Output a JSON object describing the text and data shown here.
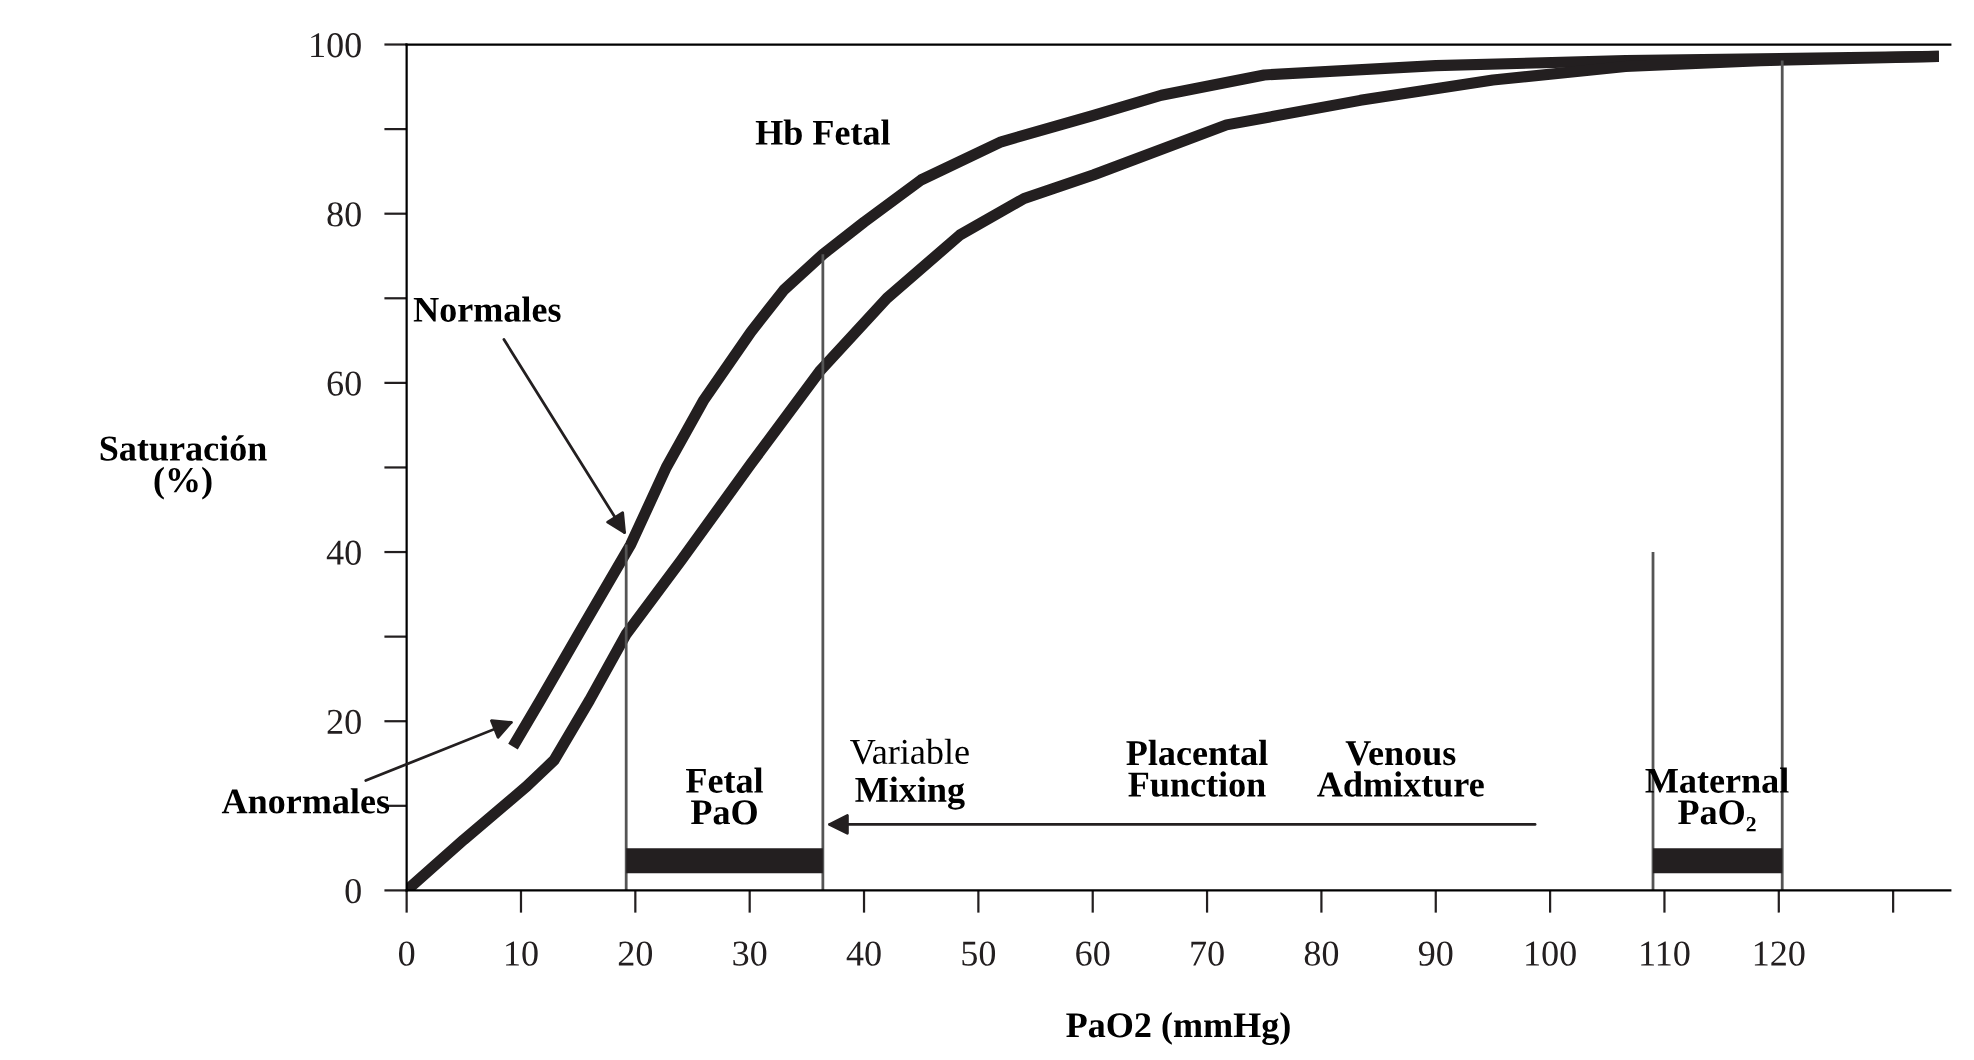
{
  "chart_data": {
    "type": "line",
    "xlabel": "PaO2 (mmHg)",
    "ylabel": "Saturación\n(%)",
    "series": [
      {
        "name": "Hb Fetal",
        "color": "#231f20",
        "x": [
          9.3,
          11.7,
          15.2,
          19.6,
          22.7,
          26,
          30.1,
          33,
          36.4,
          40,
          45,
          52,
          60,
          66,
          75,
          90,
          106.6,
          134
        ],
        "values": [
          17,
          22.5,
          30.7,
          40.9,
          50,
          58,
          66,
          71,
          75.2,
          79,
          84,
          88.5,
          91.6,
          94,
          96.4,
          97.5,
          98.1,
          98.6
        ]
      },
      {
        "color": "#231f20",
        "x": [
          0,
          5,
          10.5,
          12.9,
          16,
          19.2,
          24,
          30.1,
          36.2,
          42,
          48.4,
          54,
          60.1,
          71.7,
          83.4,
          95,
          106.6,
          118.4,
          134
        ],
        "values": [
          0,
          6,
          12.3,
          15.4,
          22.5,
          30.3,
          39,
          50.4,
          61.5,
          70,
          77.5,
          81.8,
          84.6,
          90.5,
          93.4,
          95.8,
          97.4,
          98.1,
          98.6
        ]
      },
      {
        "color": "#555555",
        "x": [
          19.2,
          19.2
        ],
        "values": [
          0,
          40.9
        ]
      },
      {
        "color": "#555555",
        "x": [
          36.4,
          36.4
        ],
        "values": [
          0,
          75.2
        ]
      },
      {
        "color": "#555555",
        "x": [
          109,
          109
        ],
        "values": [
          0,
          40
        ]
      },
      {
        "color": "#555555",
        "x": [
          120.3,
          120.3
        ],
        "values": [
          0,
          98.1
        ]
      },
      {
        "color": "#231f20",
        "x": [
          19.2,
          36.4
        ],
        "values": [
          3.5,
          3.5
        ]
      },
      {
        "color": "#231f20",
        "x": [
          109,
          120.3
        ],
        "values": [
          3.5,
          3.5
        ]
      }
    ],
    "annotations": [
      {
        "text": "Normales",
        "x": 19.2,
        "y": 42
      },
      {
        "text": "Anormales",
        "x": 9.4,
        "y": 20
      },
      "Variable",
      "Mixing",
      "Placental\nFunction",
      "Venous\nAdmixture",
      {
        "text": "Fetal\nPaO",
        "x": 27.8,
        "y": 3.5
      },
      {
        "text": "Maternal\nPaO₂",
        "x": 114.6,
        "y": 3.5
      }
    ],
    "xlim": [
      0,
      135
    ],
    "ylim": [
      0,
      100
    ],
    "xticks": [
      0,
      10,
      20,
      30,
      40,
      50,
      60,
      70,
      80,
      90,
      100,
      110,
      120,
      {
        "value": 130,
        "label": null
      }
    ],
    "yticks": [
      0,
      {
        "value": 10,
        "label": null
      },
      20,
      {
        "value": 30,
        "label": null
      },
      40,
      {
        "value": 50,
        "label": null
      },
      60,
      {
        "value": 70,
        "label": null
      },
      80,
      {
        "value": 90,
        "label": null
      },
      100
    ],
    "grid": false,
    "legend": false,
    "marker": "none",
    "line_style": "solid"
  }
}
